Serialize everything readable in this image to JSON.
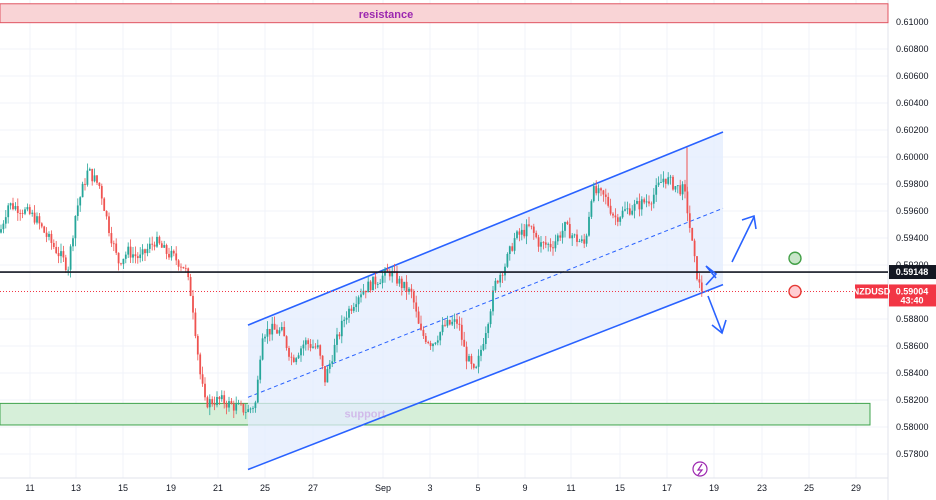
{
  "chart_data": {
    "type": "candlestick",
    "symbol": "NZDUSD",
    "y_ticks": [
      "0.61000",
      "0.60800",
      "0.60600",
      "0.60400",
      "0.60200",
      "0.60000",
      "0.59800",
      "0.59600",
      "0.59400",
      "0.59200",
      "0.58800",
      "0.58600",
      "0.58400",
      "0.58200",
      "0.58000",
      "0.57800"
    ],
    "ylim": [
      0.5768,
      0.6114
    ],
    "x_ticks": [
      "11",
      "13",
      "15",
      "19",
      "21",
      "25",
      "27",
      "Sep",
      "3",
      "5",
      "9",
      "11",
      "15",
      "17",
      "19",
      "23",
      "25",
      "29"
    ],
    "key_level": {
      "value": 0.59148,
      "label": "0.59148"
    },
    "current_price": {
      "value": 0.59004,
      "label": "0.59004",
      "countdown": "43:40",
      "symbol": "NZDUSD"
    },
    "resistance": {
      "label": "resistance",
      "from": 0.60995,
      "to": 0.61135
    },
    "support": {
      "label": "support",
      "from": 0.58015,
      "to": 0.58175
    },
    "channel": {
      "upper": [
        [
          0.58755
        ],
        [
          0.60185
        ]
      ],
      "lower": [
        [
          0.57685
        ],
        [
          0.59055
        ]
      ],
      "t_range": [
        1.0,
        15.7
      ]
    },
    "scenarios": {
      "bullish": "up",
      "bearish": "down"
    },
    "colors": {
      "up": "#26a69a",
      "down": "#ef5350",
      "channel": "#2962ff",
      "channel_fill": "#e3ecfd",
      "resistance_fill": "#f9d4d6",
      "support_fill": "#d6efd9",
      "current_price": "#f23645",
      "key_level": "#131722"
    }
  }
}
